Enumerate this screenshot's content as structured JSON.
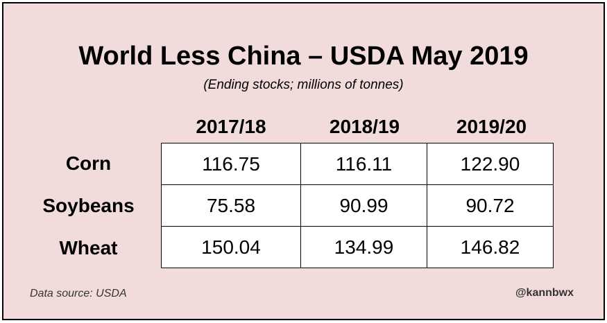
{
  "chart_data": {
    "type": "table",
    "title": "World Less China – USDA May 2019",
    "subtitle": "(Ending stocks; millions of tonnes)",
    "columns": [
      "2017/18",
      "2018/19",
      "2019/20"
    ],
    "rows": [
      {
        "label": "Corn",
        "values": [
          "116.75",
          "116.11",
          "122.90"
        ]
      },
      {
        "label": "Soybeans",
        "values": [
          "75.58",
          "90.99",
          "90.72"
        ]
      },
      {
        "label": "Wheat",
        "values": [
          "150.04",
          "134.99",
          "146.82"
        ]
      }
    ],
    "source": "Data source: USDA",
    "credit": "@kannbwx"
  },
  "colors": {
    "background": "#f2dcdb",
    "border": "#000000",
    "table_fill": "#ffffff"
  }
}
